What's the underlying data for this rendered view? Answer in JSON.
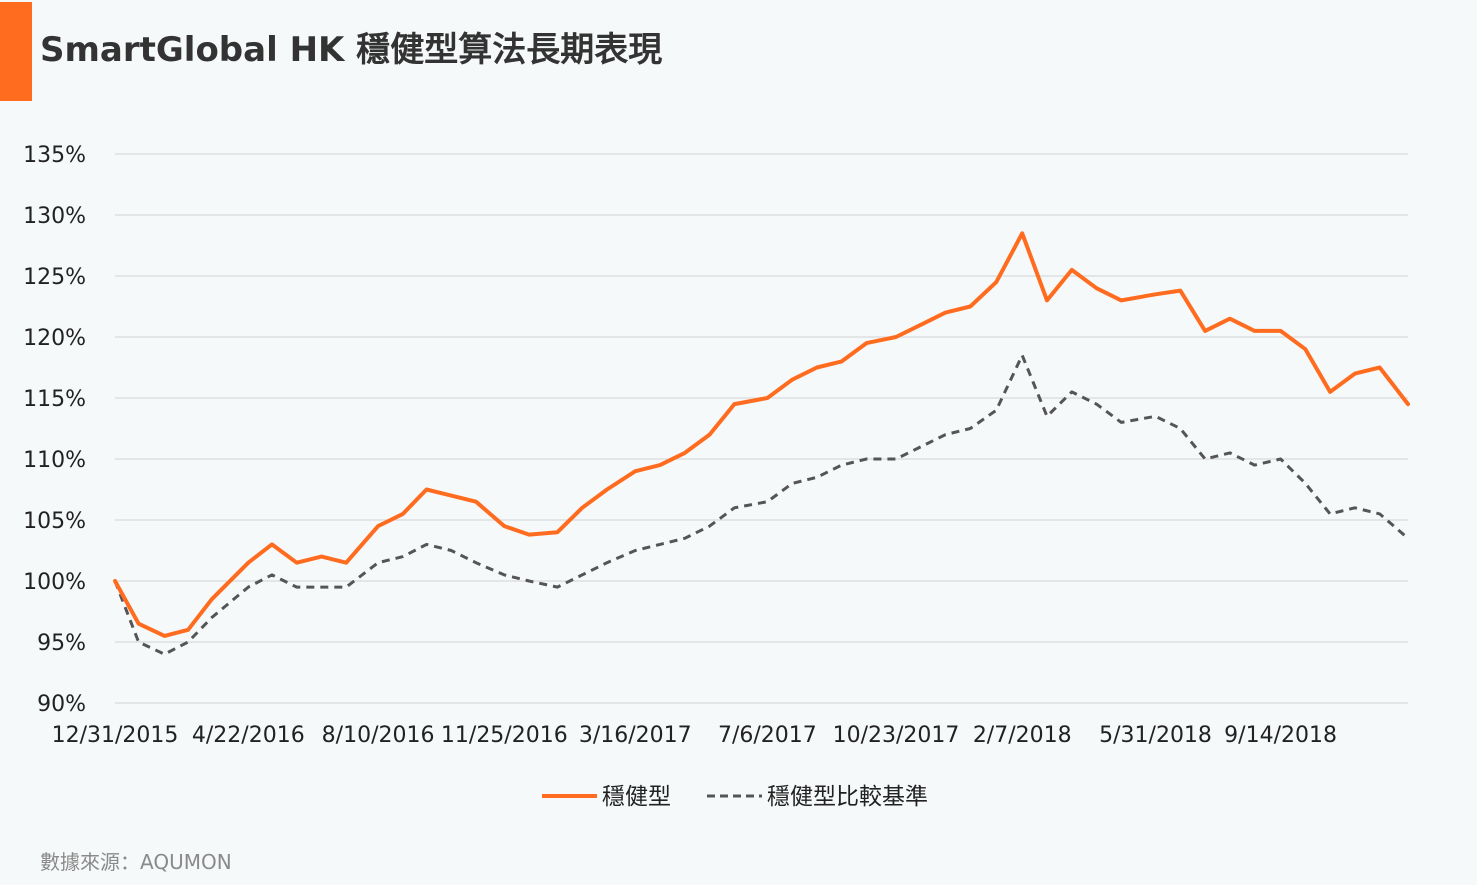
{
  "title": "SmartGlobal HK 穩健型算法長期表現",
  "source": "數據來源：AQUMON",
  "colors": {
    "primary": "#ff6c1f",
    "benchmark": "#555555",
    "grid": "#d9d9d9",
    "text": "#222222"
  },
  "chart_data": {
    "type": "line",
    "title": "SmartGlobal HK 穩健型算法長期表現",
    "xlabel": "",
    "ylabel": "",
    "ylim": [
      90,
      135
    ],
    "yticks": [
      "90%",
      "95%",
      "100%",
      "105%",
      "110%",
      "115%",
      "120%",
      "125%",
      "130%",
      "135%"
    ],
    "x_tick_labels": [
      "12/31/2015",
      "4/22/2016",
      "8/10/2016",
      "11/25/2016",
      "3/16/2017",
      "7/6/2017",
      "10/23/2017",
      "2/7/2018",
      "5/31/2018",
      "9/14/2018"
    ],
    "x": [
      "12/31/2015",
      "1/20/2016",
      "2/11/2016",
      "3/2/2016",
      "3/22/2016",
      "4/22/2016",
      "5/12/2016",
      "6/2/2016",
      "6/23/2016",
      "7/14/2016",
      "8/10/2016",
      "8/31/2016",
      "9/20/2016",
      "10/11/2016",
      "11/1/2016",
      "11/25/2016",
      "12/16/2016",
      "1/9/2017",
      "1/30/2017",
      "2/20/2017",
      "3/16/2017",
      "4/6/2017",
      "4/27/2017",
      "5/18/2017",
      "6/8/2017",
      "7/6/2017",
      "7/27/2017",
      "8/17/2017",
      "9/7/2017",
      "9/28/2017",
      "10/23/2017",
      "11/13/2017",
      "12/4/2017",
      "12/25/2017",
      "1/16/2018",
      "2/7/2018",
      "2/28/2018",
      "3/21/2018",
      "4/11/2018",
      "5/2/2018",
      "5/31/2018",
      "6/21/2018",
      "7/12/2018",
      "8/2/2018",
      "8/23/2018",
      "9/14/2018",
      "10/5/2018",
      "10/26/2018",
      "11/16/2018",
      "12/7/2018",
      "12/31/2018"
    ],
    "series": [
      {
        "name": "穩健型",
        "style": "solid",
        "color": "#ff6c1f",
        "values": [
          100.0,
          96.5,
          95.5,
          96.0,
          98.5,
          101.5,
          103.0,
          101.5,
          102.0,
          101.5,
          104.5,
          105.5,
          107.5,
          107.0,
          106.5,
          104.5,
          103.8,
          104.0,
          106.0,
          107.5,
          109.0,
          109.5,
          110.5,
          112.0,
          114.5,
          115.0,
          116.5,
          117.5,
          118.0,
          119.5,
          120.0,
          121.0,
          122.0,
          122.5,
          124.5,
          128.5,
          123.0,
          125.5,
          124.0,
          123.0,
          123.5,
          123.8,
          120.5,
          121.5,
          120.5,
          120.5,
          119.0,
          115.5,
          117.0,
          117.5,
          114.5
        ]
      },
      {
        "name": "穩健型比較基準",
        "style": "dashed",
        "color": "#555555",
        "values": [
          100.0,
          95.0,
          94.0,
          95.0,
          97.0,
          99.5,
          100.5,
          99.5,
          99.5,
          99.5,
          101.5,
          102.0,
          103.0,
          102.5,
          101.5,
          100.5,
          100.0,
          99.5,
          100.5,
          101.5,
          102.5,
          103.0,
          103.5,
          104.5,
          106.0,
          106.5,
          108.0,
          108.5,
          109.5,
          110.0,
          110.0,
          111.0,
          112.0,
          112.5,
          114.0,
          118.5,
          113.5,
          115.5,
          114.5,
          113.0,
          113.5,
          112.5,
          110.0,
          110.5,
          109.5,
          110.0,
          108.0,
          105.5,
          106.0,
          105.5,
          103.5
        ]
      }
    ],
    "legend_position": "bottom-center",
    "grid": true
  }
}
